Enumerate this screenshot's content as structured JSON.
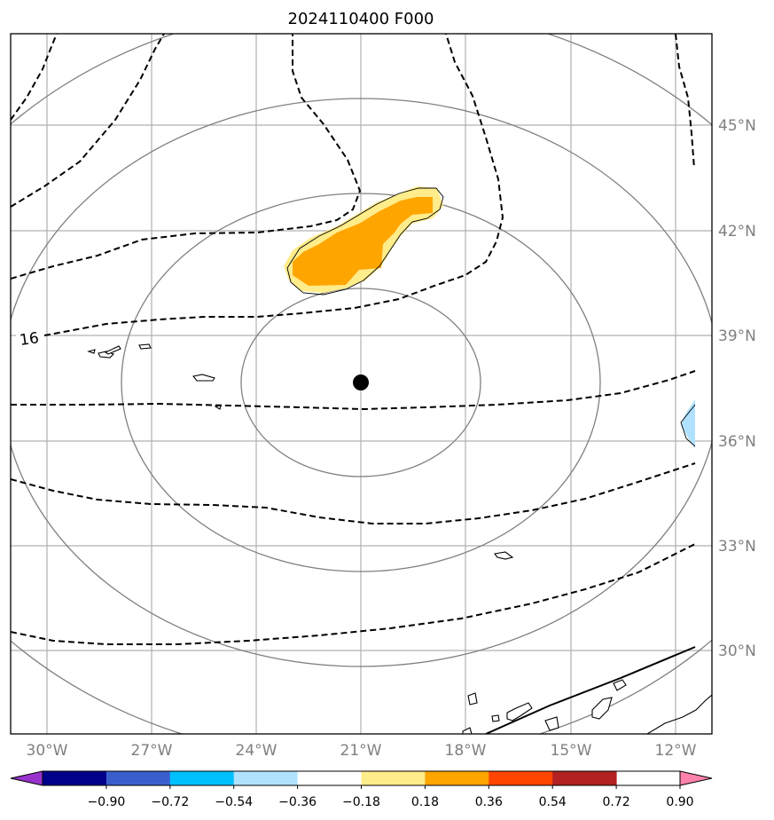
{
  "title": "2024110400 F000",
  "longitude_labels": [
    "30°W",
    "27°W",
    "24°W",
    "21°W",
    "18°W",
    "15°W",
    "12°W"
  ],
  "latitude_labels": [
    "45°N",
    "42°N",
    "39°N",
    "36°N",
    "33°N",
    "30°N"
  ],
  "contour_label": "16",
  "colorbar": {
    "tick_labels": [
      "−0.90",
      "−0.72",
      "−0.54",
      "−0.36",
      "−0.18",
      "0.18",
      "0.36",
      "0.54",
      "0.72",
      "0.90"
    ],
    "colors": [
      "#9932cc",
      "#00008b",
      "#3a5fcd",
      "#00bfff",
      "#b0e2ff",
      "#ffffff",
      "#ffec8b",
      "#ffa500",
      "#ff4500",
      "#b22222",
      "#ff82ab"
    ]
  },
  "center_marker": {
    "lon": -21,
    "lat": 37.6
  },
  "colors": {
    "grid": "#b0b0b0",
    "circles": "#808080",
    "fill_light": "#ffec8b",
    "fill_dark": "#ffa500",
    "fill_blue": "#b0e2ff"
  }
}
